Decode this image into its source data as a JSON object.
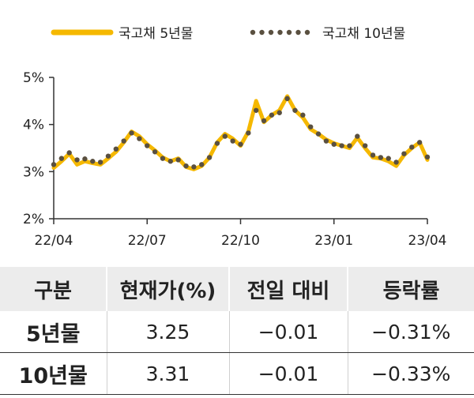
{
  "chart_data": {
    "type": "line",
    "title": "",
    "xlabel": "",
    "ylabel": "",
    "ylim": [
      2,
      5
    ],
    "y_ticks": [
      "2%",
      "3%",
      "4%",
      "5%"
    ],
    "x_ticks": [
      "22/04",
      "22/07",
      "22/10",
      "23/01",
      "23/04"
    ],
    "legend_position": "top",
    "grid": false,
    "x_months": [
      0,
      0.25,
      0.5,
      0.75,
      1,
      1.25,
      1.5,
      1.75,
      2,
      2.25,
      2.5,
      2.75,
      3,
      3.25,
      3.5,
      3.75,
      4,
      4.25,
      4.5,
      4.75,
      5,
      5.25,
      5.5,
      5.75,
      6,
      6.25,
      6.5,
      6.75,
      7,
      7.25,
      7.5,
      7.75,
      8,
      8.25,
      8.5,
      8.75,
      9,
      9.25,
      9.5,
      9.75,
      10,
      10.25,
      10.5,
      10.75,
      11,
      11.25,
      11.5,
      11.75,
      12
    ],
    "series": [
      {
        "name": "국고채 5년물",
        "color": "#f5b800",
        "style": "solid",
        "values": [
          3.08,
          3.22,
          3.38,
          3.15,
          3.22,
          3.18,
          3.15,
          3.28,
          3.42,
          3.62,
          3.85,
          3.75,
          3.58,
          3.45,
          3.3,
          3.22,
          3.28,
          3.1,
          3.05,
          3.12,
          3.3,
          3.62,
          3.8,
          3.7,
          3.55,
          3.85,
          4.5,
          4.05,
          4.2,
          4.3,
          4.6,
          4.3,
          4.15,
          3.9,
          3.8,
          3.68,
          3.6,
          3.55,
          3.5,
          3.72,
          3.5,
          3.3,
          3.28,
          3.22,
          3.12,
          3.35,
          3.5,
          3.62,
          3.25
        ]
      },
      {
        "name": "국고채 10년물",
        "color": "#5a5040",
        "style": "dotted",
        "values": [
          3.15,
          3.28,
          3.4,
          3.25,
          3.27,
          3.22,
          3.2,
          3.33,
          3.48,
          3.65,
          3.82,
          3.7,
          3.55,
          3.42,
          3.28,
          3.22,
          3.25,
          3.12,
          3.1,
          3.15,
          3.3,
          3.6,
          3.75,
          3.65,
          3.58,
          3.82,
          4.3,
          4.08,
          4.2,
          4.25,
          4.55,
          4.3,
          4.2,
          3.95,
          3.8,
          3.65,
          3.58,
          3.55,
          3.55,
          3.75,
          3.55,
          3.35,
          3.3,
          3.28,
          3.2,
          3.38,
          3.52,
          3.62,
          3.31
        ]
      }
    ]
  },
  "table": {
    "headers": [
      "구분",
      "현재가(%)",
      "전일 대비",
      "등락률"
    ],
    "rows": [
      [
        "5년물",
        "3.25",
        "−0.01",
        "−0.31%"
      ],
      [
        "10년물",
        "3.31",
        "−0.01",
        "−0.33%"
      ]
    ]
  }
}
